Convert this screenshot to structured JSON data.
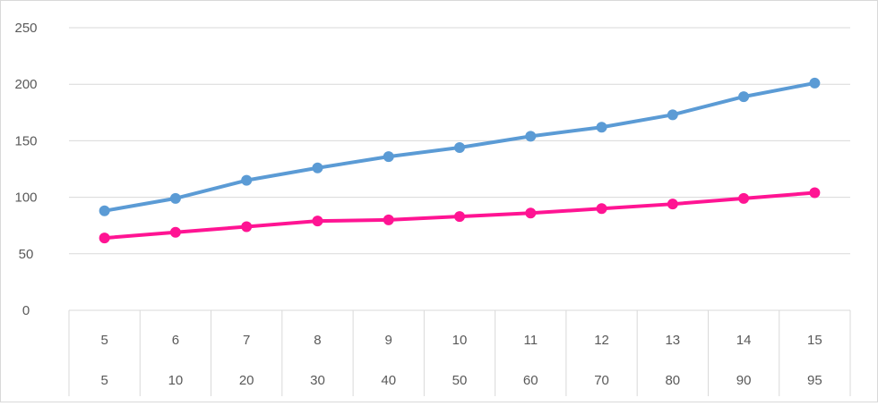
{
  "chart_data": {
    "type": "line",
    "categories": [
      [
        "5",
        "5"
      ],
      [
        "6",
        "10"
      ],
      [
        "7",
        "20"
      ],
      [
        "8",
        "30"
      ],
      [
        "9",
        "40"
      ],
      [
        "10",
        "50"
      ],
      [
        "11",
        "60"
      ],
      [
        "12",
        "70"
      ],
      [
        "13",
        "80"
      ],
      [
        "14",
        "90"
      ],
      [
        "15",
        "95"
      ]
    ],
    "series": [
      {
        "values": [
          88,
          99,
          115,
          126,
          136,
          144,
          154,
          162,
          173,
          189,
          201
        ],
        "color": "#5b9bd5"
      },
      {
        "values": [
          64,
          69,
          74,
          79,
          80,
          83,
          86,
          90,
          94,
          99,
          104
        ],
        "color": "#ff1493"
      }
    ],
    "y_ticks": [
      "0",
      "50",
      "100",
      "150",
      "200",
      "250"
    ],
    "ylim": [
      0,
      250
    ],
    "grid": true,
    "legend": "none",
    "title": "",
    "xlabel": "",
    "ylabel": ""
  }
}
